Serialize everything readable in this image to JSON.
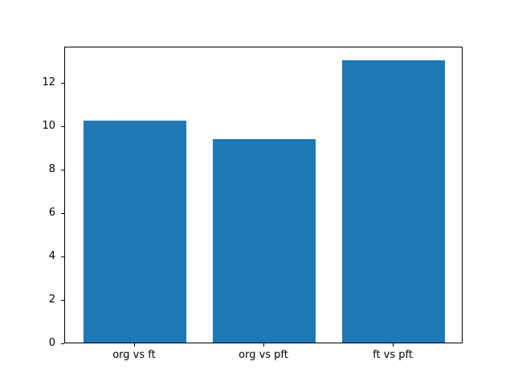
{
  "chart_data": {
    "type": "bar",
    "categories": [
      "org vs ft",
      "org vs pft",
      "ft vs pft"
    ],
    "values": [
      10.2,
      9.35,
      13.0
    ],
    "title": "",
    "xlabel": "",
    "ylabel": "",
    "ylim": [
      0,
      13.65
    ],
    "yticks": [
      0,
      2,
      4,
      6,
      8,
      10,
      12
    ],
    "bar_color": "#1f77b4",
    "bar_width": 0.8,
    "grid": false,
    "legend": false,
    "background_color": "#ffffff",
    "axis_color": "#000000"
  }
}
